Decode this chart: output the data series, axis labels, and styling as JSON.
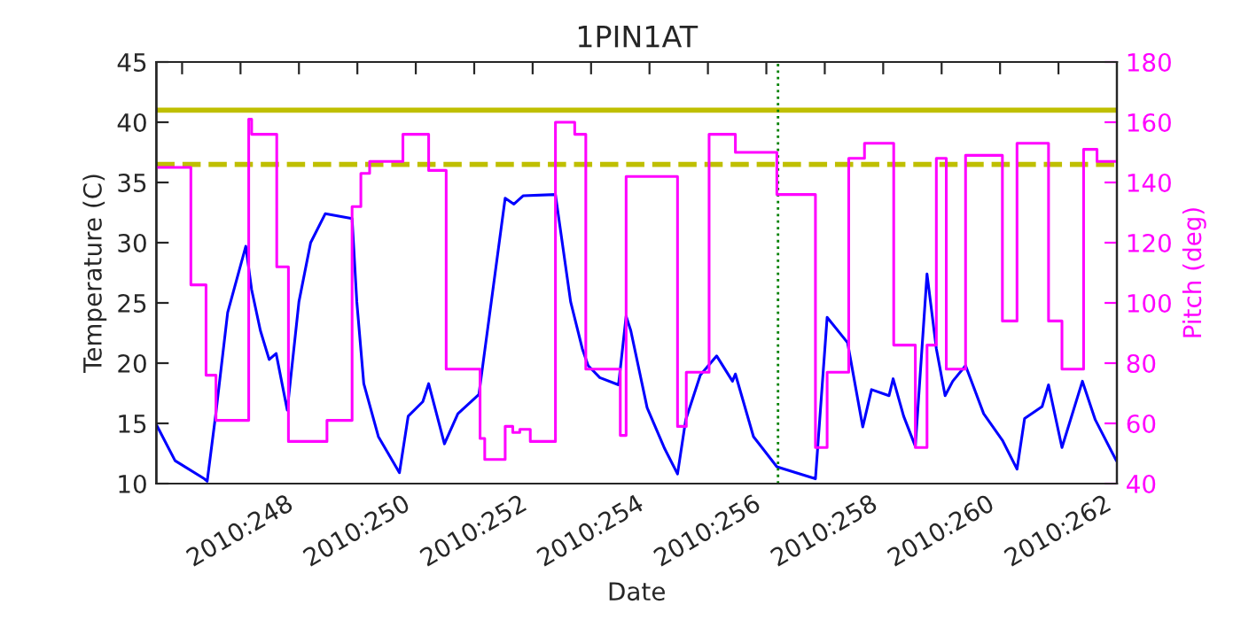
{
  "chart_data": {
    "type": "line",
    "title": "1PIN1AT",
    "xlabel": "Date",
    "ylabel": "Temperature (C)",
    "y2label": "Pitch (deg)",
    "xlim": [
      "2010-09-03T13:26",
      "2010-09-20T00:00"
    ],
    "xticks": [
      {
        "value": "2010-09-04",
        "label": null
      },
      {
        "value": "2010-09-05",
        "label": "2010:248"
      },
      {
        "value": "2010-09-06",
        "label": null
      },
      {
        "value": "2010-09-07",
        "label": "2010:250"
      },
      {
        "value": "2010-09-08",
        "label": null
      },
      {
        "value": "2010-09-09",
        "label": "2010:252"
      },
      {
        "value": "2010-09-10",
        "label": null
      },
      {
        "value": "2010-09-11",
        "label": "2010:254"
      },
      {
        "value": "2010-09-12",
        "label": null
      },
      {
        "value": "2010-09-13",
        "label": "2010:256"
      },
      {
        "value": "2010-09-14",
        "label": null
      },
      {
        "value": "2010-09-15",
        "label": "2010:258"
      },
      {
        "value": "2010-09-16",
        "label": null
      },
      {
        "value": "2010-09-17",
        "label": "2010:260"
      },
      {
        "value": "2010-09-18",
        "label": null
      },
      {
        "value": "2010-09-19",
        "label": "2010:262"
      }
    ],
    "ylim": [
      10,
      45
    ],
    "yticks": [
      10,
      15,
      20,
      25,
      30,
      35,
      40,
      45
    ],
    "y2lim": [
      40,
      180
    ],
    "y2ticks": [
      40,
      60,
      80,
      100,
      120,
      140,
      160,
      180
    ],
    "grid": false,
    "legend": false,
    "series": [
      {
        "color": "#0000ff",
        "x": [
          "2010-09-03T13:41",
          "2010-09-03T21:07",
          "2010-09-04T09:07",
          "2010-09-04T10:19",
          "2010-09-04T13:55",
          "2010-09-04T18:43",
          "2010-09-05T02:10",
          "2010-09-05T04:34",
          "2010-09-05T08:10",
          "2010-09-05T11:46",
          "2010-09-05T14:38",
          "2010-09-05T19:12",
          "2010-09-06T00:00",
          "2010-09-06T04:48",
          "2010-09-06T10:48",
          "2010-09-06T21:50",
          "2010-09-06T23:46",
          "2010-09-07T02:38",
          "2010-09-07T08:38",
          "2010-09-07T17:17",
          "2010-09-07T20:53",
          "2010-09-08T02:53",
          "2010-09-08T05:17",
          "2010-09-08T11:46",
          "2010-09-08T17:17",
          "2010-09-09T01:55",
          "2010-09-09T12:43",
          "2010-09-09T16:19",
          "2010-09-09T20:10",
          "2010-09-10T09:22",
          "2010-09-10T15:36",
          "2010-09-10T20:24",
          "2010-09-10T22:48",
          "2010-09-11T03:36",
          "2010-09-11T11:17",
          "2010-09-11T14:24",
          "2010-09-11T16:19",
          "2010-09-11T23:02",
          "2010-09-12T06:14",
          "2010-09-12T11:31",
          "2010-09-12T14:53",
          "2010-09-12T20:53",
          "2010-09-13T03:36",
          "2010-09-13T10:05",
          "2010-09-13T11:17",
          "2010-09-13T18:43",
          "2010-09-14T04:19",
          "2010-09-14T20:10",
          "2010-09-15T00:58",
          "2010-09-15T09:22",
          "2010-09-15T15:36",
          "2010-09-15T19:12",
          "2010-09-16T02:24",
          "2010-09-16T04:05",
          "2010-09-16T08:24",
          "2010-09-16T13:12",
          "2010-09-16T18:00",
          "2010-09-16T21:50",
          "2010-09-17T01:26",
          "2010-09-17T04:34",
          "2010-09-17T09:50",
          "2010-09-17T17:17",
          "2010-09-18T00:58",
          "2010-09-18T06:58",
          "2010-09-18T10:05",
          "2010-09-18T17:17",
          "2010-09-18T19:55",
          "2010-09-19T01:26",
          "2010-09-19T09:50",
          "2010-09-19T15:07",
          "2010-09-19T23:46"
        ],
        "values": [
          14.8,
          11.9,
          10.4,
          10.2,
          15.9,
          24.2,
          29.7,
          26.1,
          22.7,
          20.3,
          20.8,
          16.1,
          25.1,
          30.0,
          32.4,
          32.0,
          25.1,
          18.3,
          13.9,
          10.9,
          15.6,
          16.8,
          18.3,
          13.3,
          15.8,
          17.4,
          33.7,
          33.2,
          33.9,
          34.0,
          25.1,
          21.2,
          19.8,
          18.8,
          18.2,
          23.9,
          22.7,
          16.3,
          12.9,
          10.8,
          15.3,
          19.0,
          20.6,
          18.5,
          19.1,
          13.9,
          11.4,
          10.4,
          23.8,
          21.7,
          14.7,
          17.8,
          17.3,
          18.7,
          15.6,
          13.1,
          27.4,
          21.2,
          17.3,
          18.5,
          19.8,
          15.8,
          13.6,
          11.2,
          15.4,
          16.4,
          18.2,
          13.0,
          18.5,
          15.3,
          11.9
        ]
      },
      {
        "type": "step",
        "axis": "y2",
        "color": "#ff00ff",
        "x": [
          "2010-09-03T13:26",
          "2010-09-04T03:36",
          "2010-09-04T09:50",
          "2010-09-04T13:55",
          "2010-09-05T03:22",
          "2010-09-05T04:34",
          "2010-09-05T14:53",
          "2010-09-05T19:41",
          "2010-09-06T11:31",
          "2010-09-06T21:50",
          "2010-09-07T01:26",
          "2010-09-07T05:02",
          "2010-09-07T18:43",
          "2010-09-08T05:17",
          "2010-09-08T12:29",
          "2010-09-09T02:24",
          "2010-09-09T04:19",
          "2010-09-09T12:43",
          "2010-09-09T15:50",
          "2010-09-09T18:43",
          "2010-09-09T23:02",
          "2010-09-10T09:22",
          "2010-09-10T17:17",
          "2010-09-10T21:50",
          "2010-09-11T12:00",
          "2010-09-11T14:24",
          "2010-09-12T11:31",
          "2010-09-12T15:07",
          "2010-09-13T00:29",
          "2010-09-13T11:17",
          "2010-09-14T04:19",
          "2010-09-14T20:10",
          "2010-09-15T00:58",
          "2010-09-15T09:50",
          "2010-09-15T16:19",
          "2010-09-16T04:19",
          "2010-09-16T13:12",
          "2010-09-16T18:00",
          "2010-09-16T21:50",
          "2010-09-17T01:55",
          "2010-09-17T09:50",
          "2010-09-18T00:58",
          "2010-09-18T06:58",
          "2010-09-18T19:55",
          "2010-09-19T01:26",
          "2010-09-19T10:19",
          "2010-09-19T15:50",
          "2010-09-20T00:00"
        ],
        "values": [
          145,
          106,
          76,
          61,
          161,
          156,
          112,
          54,
          61,
          132,
          143,
          147,
          156,
          144,
          78,
          55,
          48,
          59,
          57,
          58,
          54,
          160,
          156,
          78,
          56,
          142,
          59,
          77,
          156,
          150,
          136,
          52,
          77,
          148,
          153,
          86,
          52,
          86,
          148,
          78,
          149,
          94,
          153,
          94,
          78,
          151,
          147,
          147
        ]
      }
    ],
    "ref_lines": [
      {
        "axis": "y",
        "value": 41,
        "color": "#bfbf00",
        "line_style": "solid"
      },
      {
        "axis": "y",
        "value": 36.5,
        "color": "#bfbf00",
        "line_style": "dashed"
      },
      {
        "axis": "x",
        "value": "2010-09-14T04:48",
        "color": "#008000",
        "line_style": "dotted"
      }
    ]
  }
}
